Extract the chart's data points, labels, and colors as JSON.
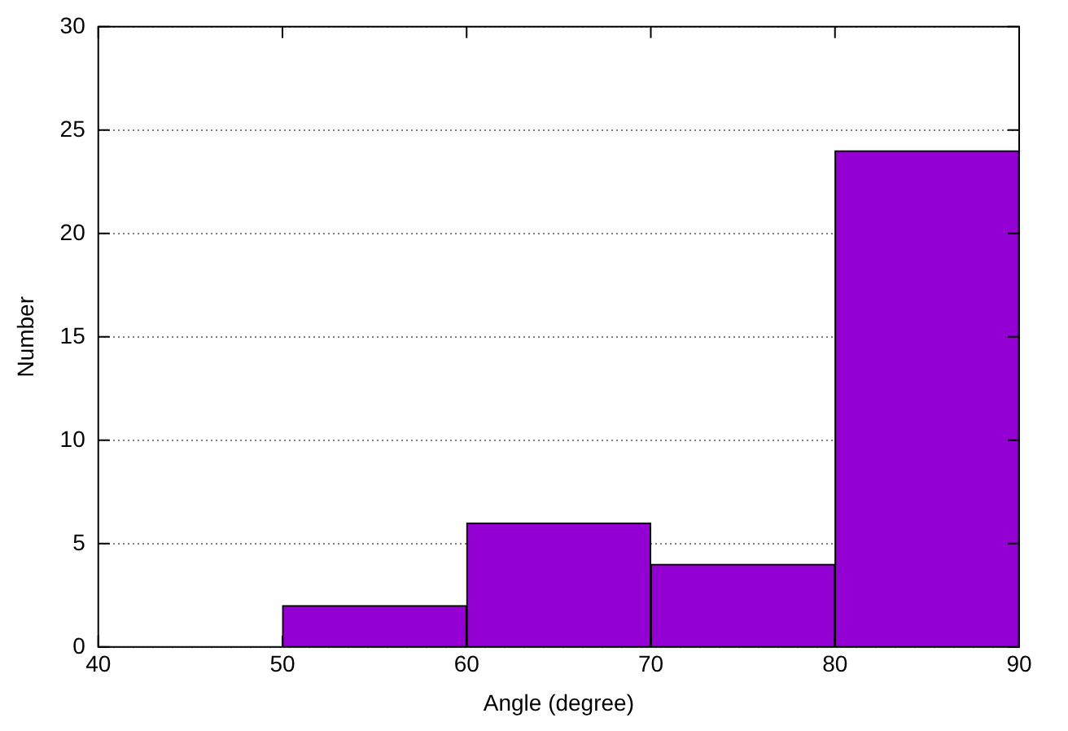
{
  "chart_data": {
    "type": "histogram",
    "xlabel": "Angle (degree)",
    "ylabel": "Number",
    "bins": [
      40,
      50,
      60,
      70,
      80,
      90
    ],
    "values": [
      0,
      2,
      6,
      4,
      24
    ],
    "color": "#9400d3",
    "xlim": [
      40,
      90
    ],
    "xticks": [
      40,
      50,
      60,
      70,
      80,
      90
    ],
    "ylim": [
      0,
      30
    ],
    "yticks": [
      0,
      5,
      10,
      15,
      20,
      25,
      30
    ],
    "grid": "y",
    "legend": false
  }
}
